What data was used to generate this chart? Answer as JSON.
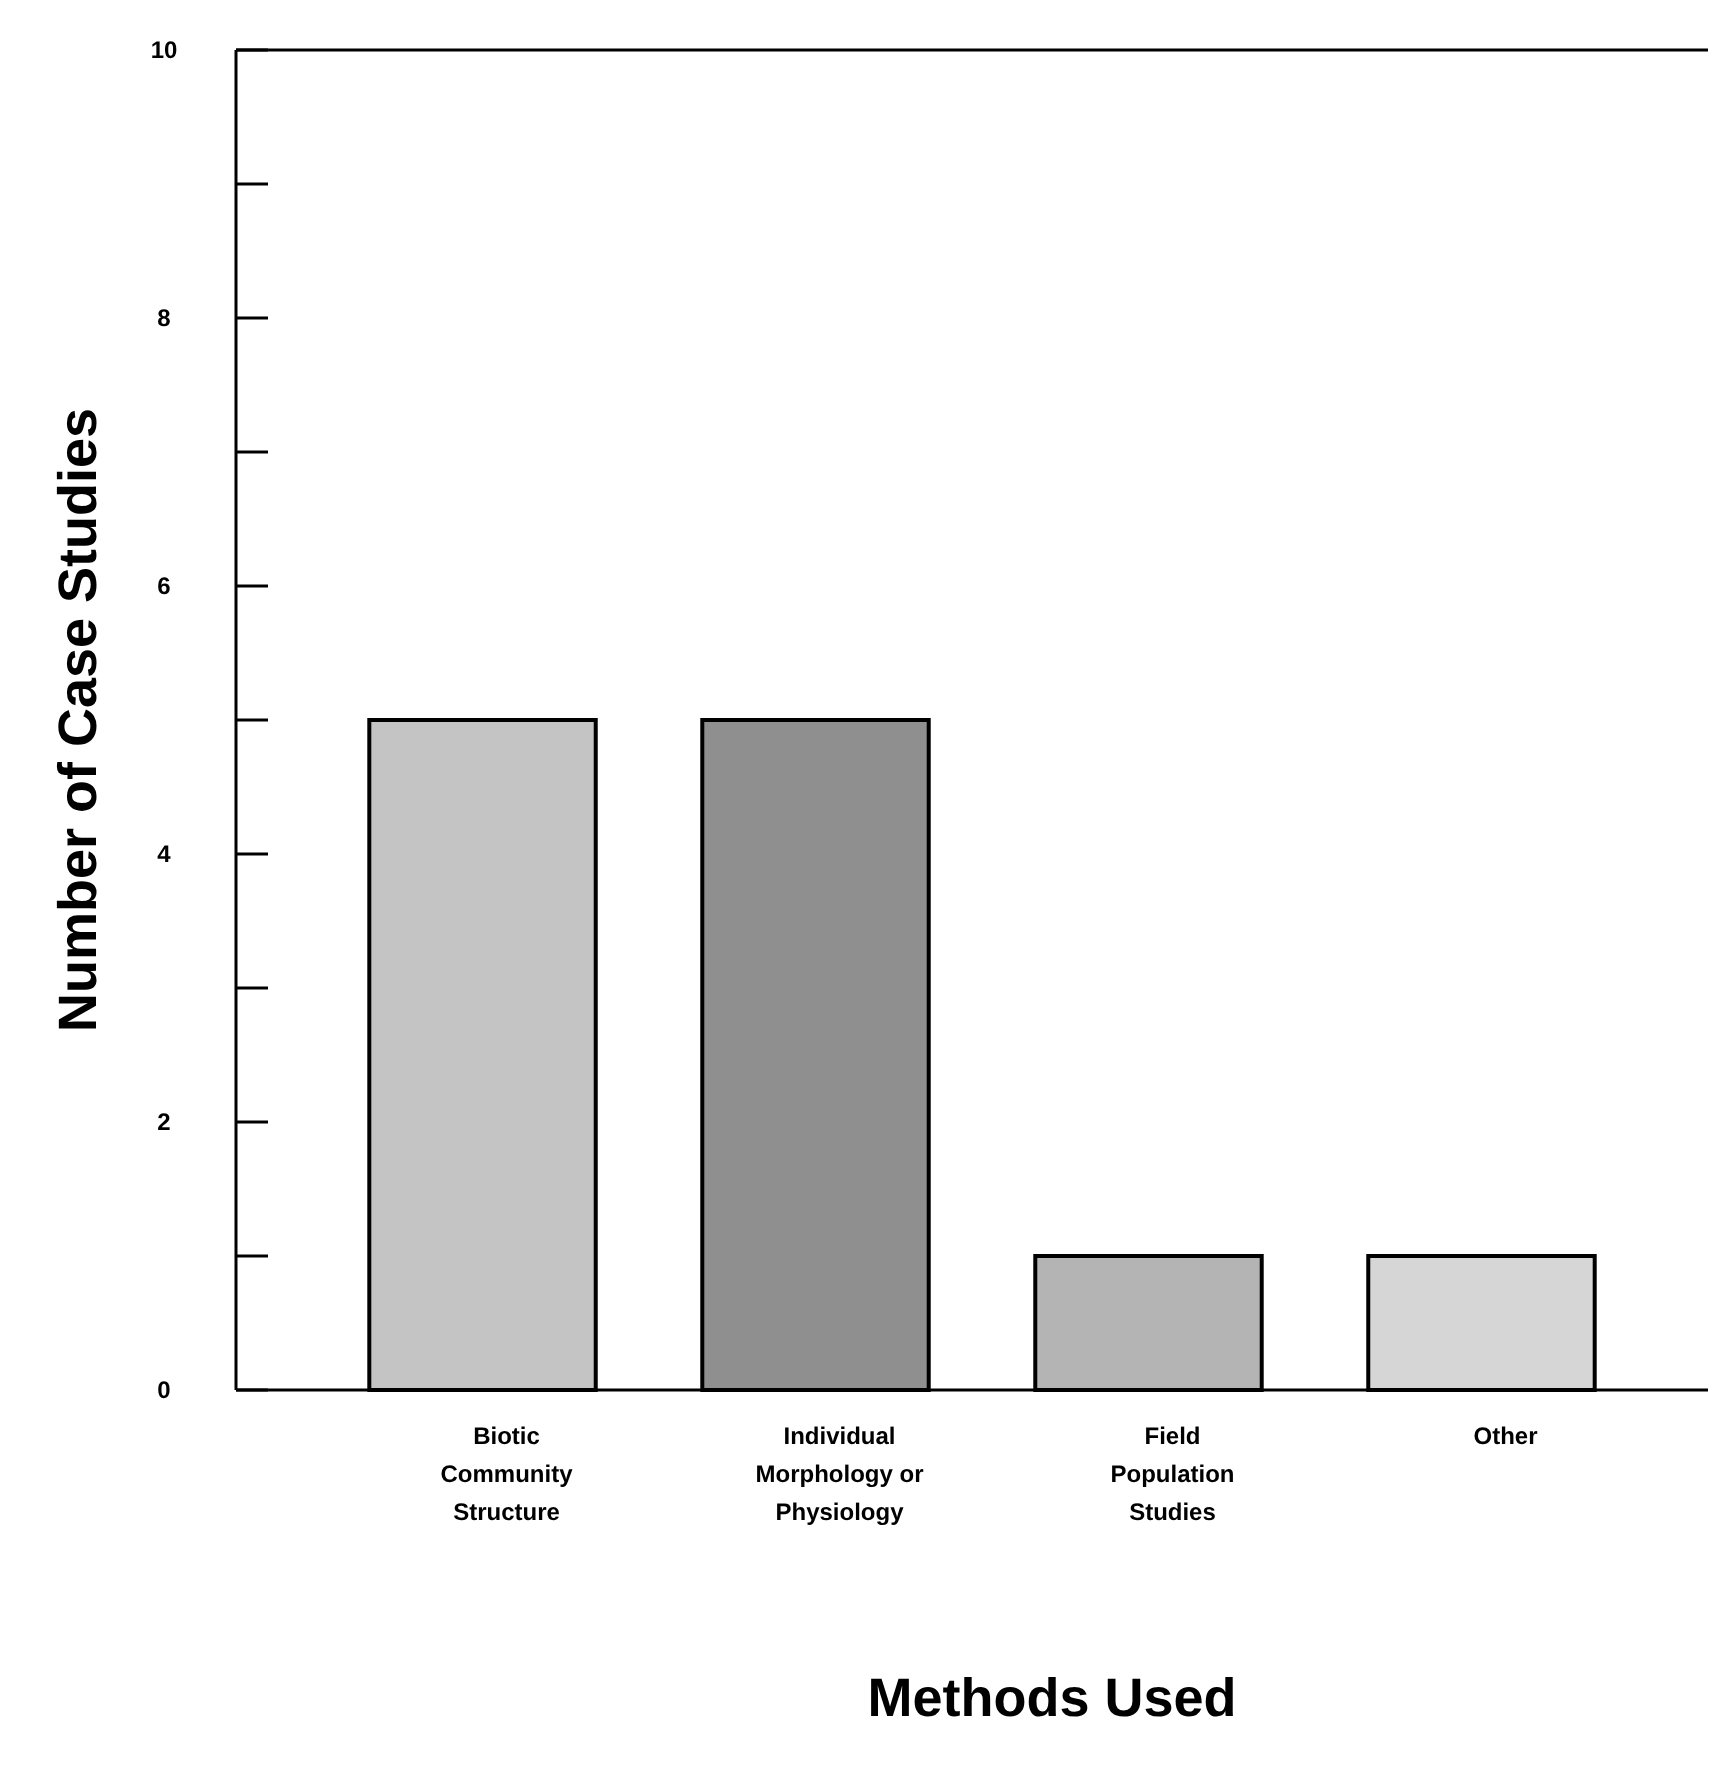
{
  "chart_data": {
    "type": "bar",
    "xlabel": "Methods Used",
    "ylabel": "Number of Case Studies",
    "categories": [
      "Biotic Community Structure",
      "Individual Morphology or Physiology",
      "Field Population Studies",
      "Other"
    ],
    "values": [
      5,
      5,
      1,
      1
    ],
    "colors": [
      "#c4c4c4",
      "#8f8f8f",
      "#b4b4b4",
      "#d6d6d6"
    ],
    "ylim": [
      0,
      10
    ],
    "yticks": [
      0,
      {
        "value": 1,
        "label": null
      },
      2,
      {
        "value": 3,
        "label": null
      },
      4,
      {
        "value": 5,
        "label": null
      },
      6,
      {
        "value": 7,
        "label": null
      },
      8,
      {
        "value": 9,
        "label": null
      },
      10
    ],
    "grid": false
  }
}
